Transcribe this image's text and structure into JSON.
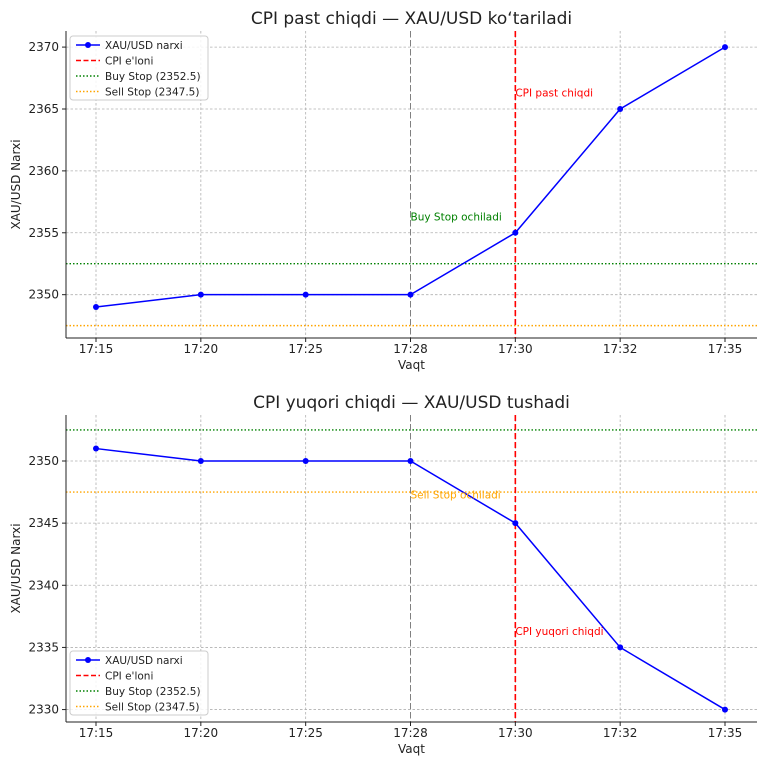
{
  "chart_data": [
    {
      "type": "line",
      "title": "CPI past chiqdi — XAU/USD ko‘tariladi",
      "xlabel": "Vaqt",
      "ylabel": "XAU/USD Narxi",
      "categories": [
        "17:15",
        "17:20",
        "17:25",
        "17:28",
        "17:30",
        "17:32",
        "17:35"
      ],
      "series": [
        {
          "name": "XAU/USD narxi",
          "values": [
            2349,
            2350,
            2350,
            2350,
            2355,
            2365,
            2370
          ],
          "color": "#0000ff"
        }
      ],
      "ylim": [
        2346.5,
        2371.3
      ],
      "yticks": [
        2350,
        2355,
        2360,
        2365,
        2370
      ],
      "grid": true,
      "legend_position": "top-left",
      "cpi_line": {
        "label": "CPI e'loni",
        "x": "17:30",
        "color": "#ff0000"
      },
      "event_line": {
        "x": "17:28",
        "color": "#808080"
      },
      "hlines": [
        {
          "label": "Buy Stop (2352.5)",
          "y": 2352.5,
          "color": "#008000"
        },
        {
          "label": "Sell Stop (2347.5)",
          "y": 2347.5,
          "color": "#ffa500"
        }
      ],
      "annotations": [
        {
          "text": "Buy Stop ochiladi",
          "x": "17:28",
          "y": 2356,
          "color": "#008000"
        },
        {
          "text": "CPI past chiqdi",
          "x": "17:30",
          "y": 2366,
          "color": "#ff0000"
        }
      ]
    },
    {
      "type": "line",
      "title": "CPI yuqori chiqdi — XAU/USD tushadi",
      "xlabel": "Vaqt",
      "ylabel": "XAU/USD Narxi",
      "categories": [
        "17:15",
        "17:20",
        "17:25",
        "17:28",
        "17:30",
        "17:32",
        "17:35"
      ],
      "series": [
        {
          "name": "XAU/USD narxi",
          "values": [
            2351,
            2350,
            2350,
            2350,
            2345,
            2335,
            2330
          ],
          "color": "#0000ff"
        }
      ],
      "ylim": [
        2329.0,
        2353.7
      ],
      "yticks": [
        2330,
        2335,
        2340,
        2345,
        2350
      ],
      "grid": true,
      "legend_position": "bottom-left",
      "cpi_line": {
        "label": "CPI e'loni",
        "x": "17:30",
        "color": "#ff0000"
      },
      "event_line": {
        "x": "17:28",
        "color": "#808080"
      },
      "hlines": [
        {
          "label": "Buy Stop (2352.5)",
          "y": 2352.5,
          "color": "#008000"
        },
        {
          "label": "Sell Stop (2347.5)",
          "y": 2347.5,
          "color": "#ffa500"
        }
      ],
      "annotations": [
        {
          "text": "Sell Stop ochiladi",
          "x": "17:28",
          "y": 2347,
          "color": "#ffa500"
        },
        {
          "text": "CPI yuqori chiqdi",
          "x": "17:30",
          "y": 2336,
          "color": "#ff0000"
        }
      ]
    }
  ]
}
